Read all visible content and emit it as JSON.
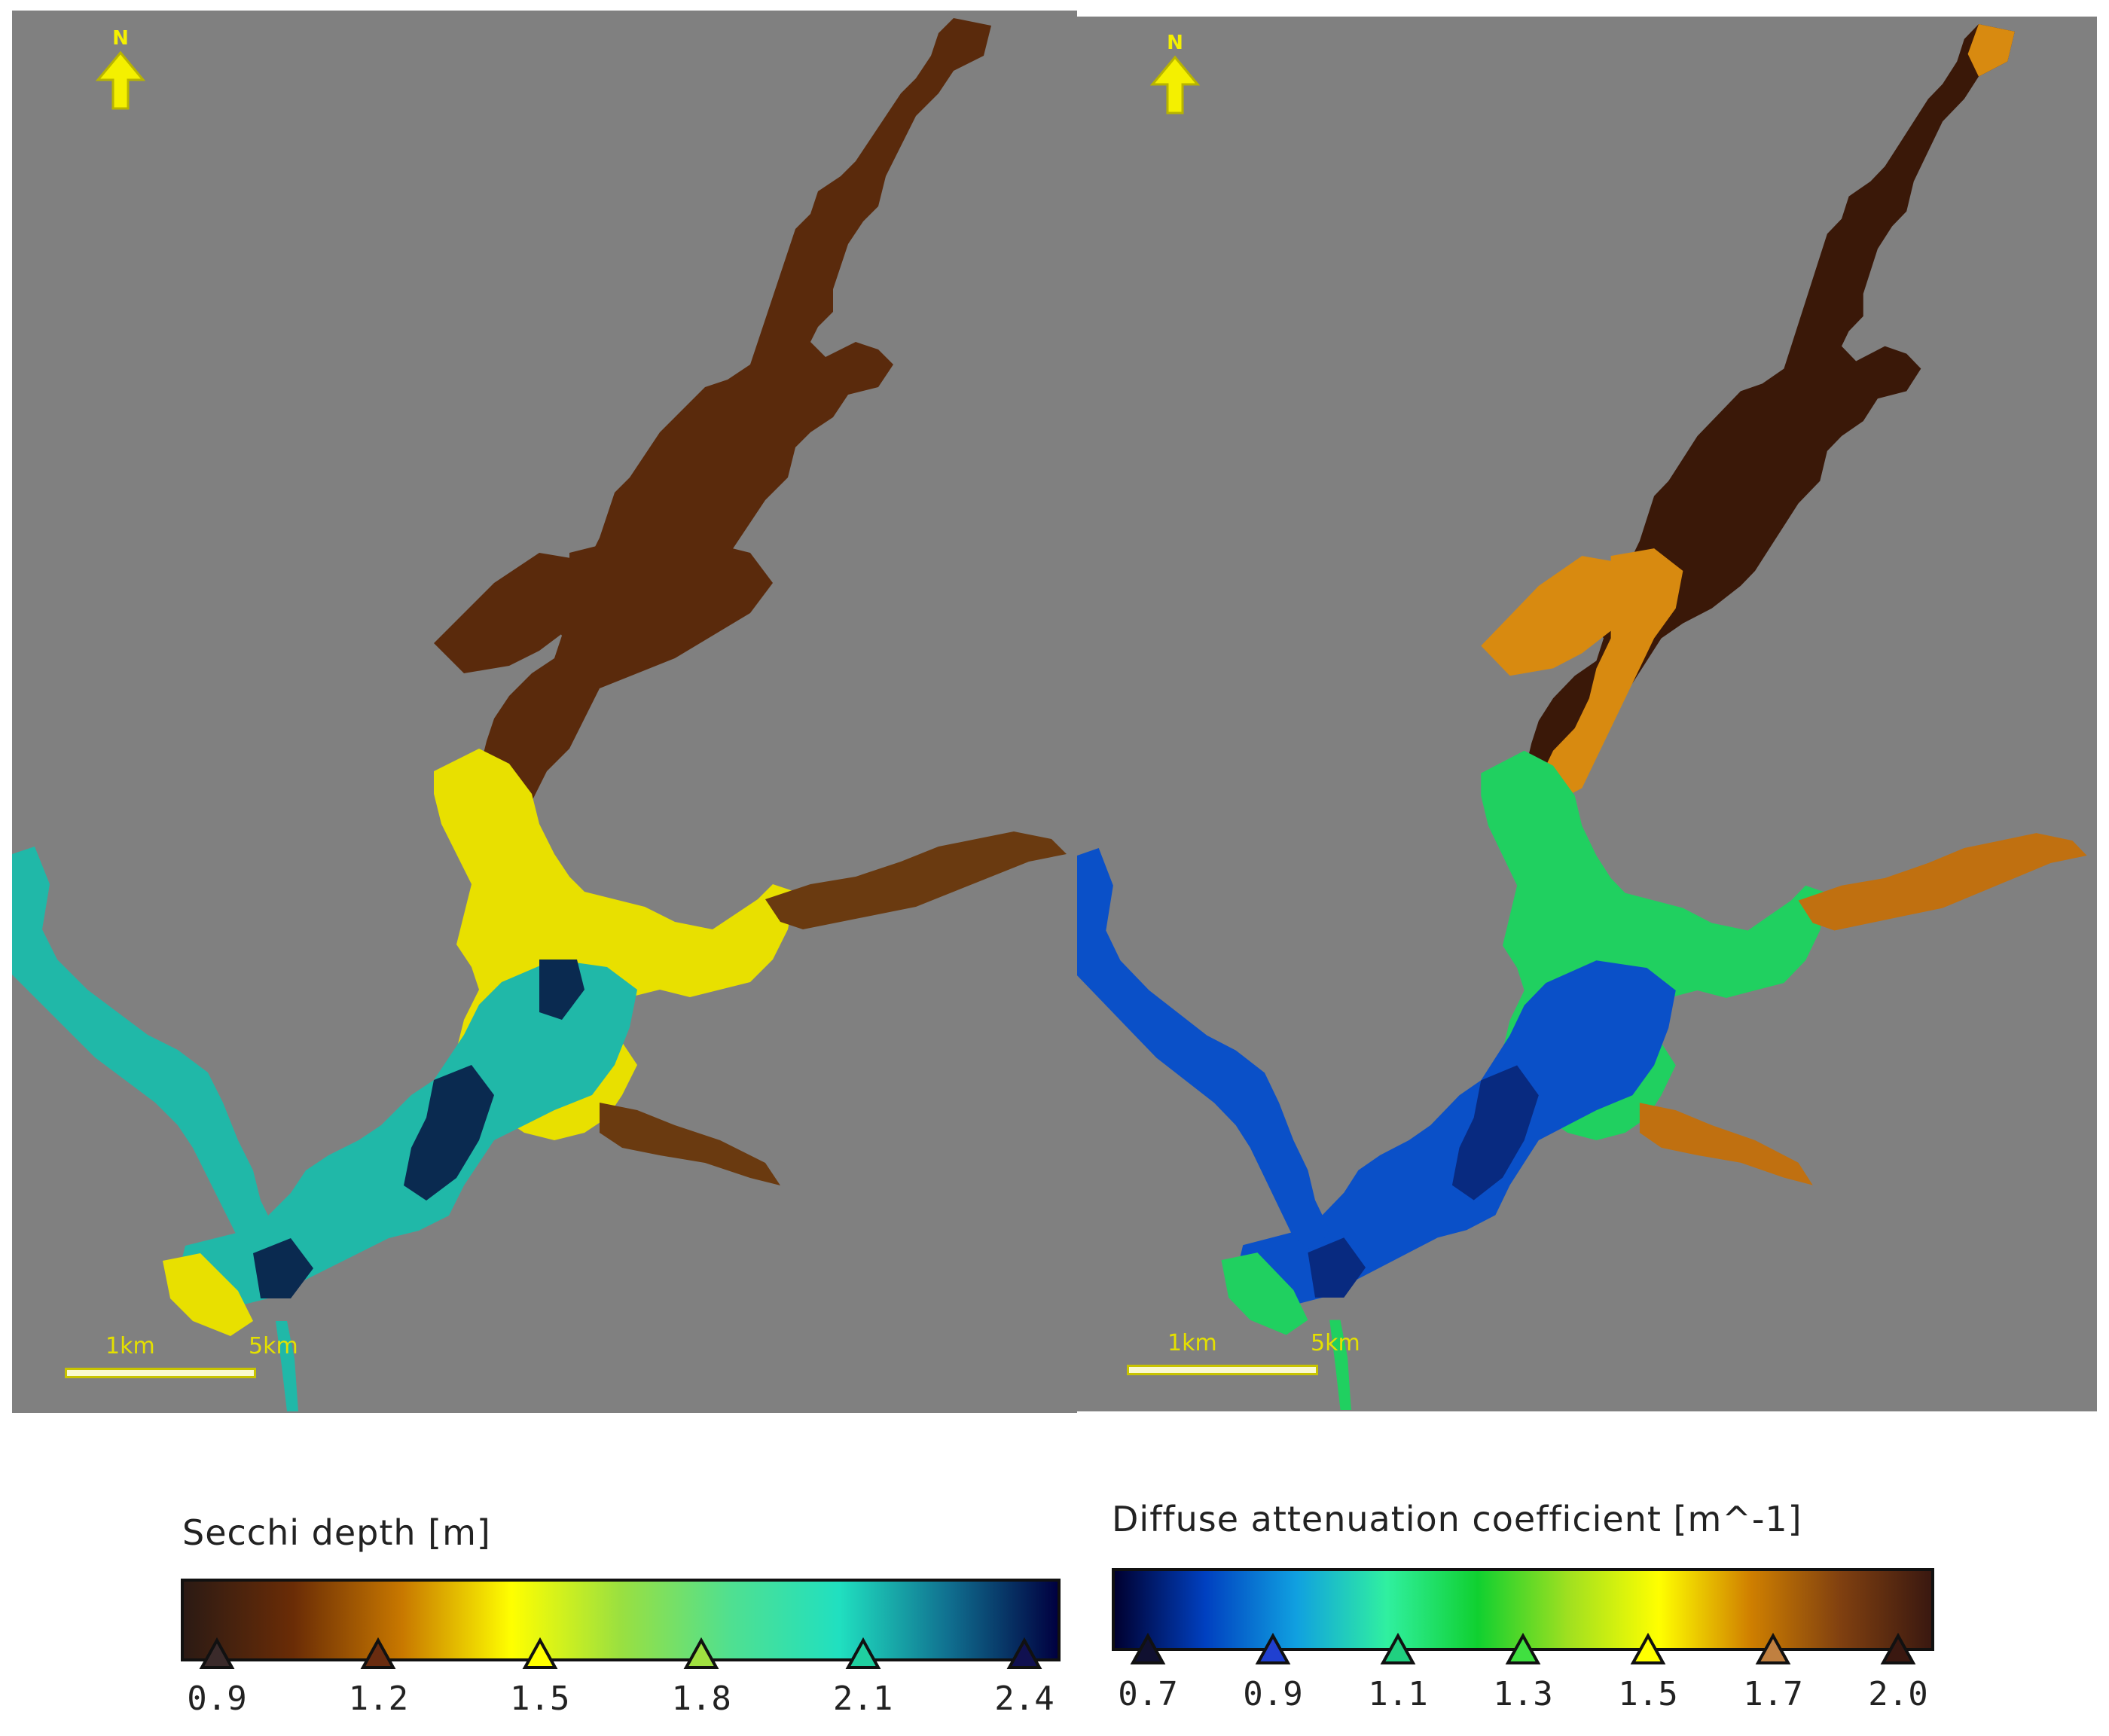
{
  "maps": {
    "left": {
      "north_label": "N",
      "scale_labels": [
        "1km",
        "5km"
      ],
      "water_colors": {
        "upper_reach": "#5a2a0c",
        "middle": "#e8e000",
        "lower": "#20b8a8",
        "deep": "#0a2a50",
        "east_arm": "#6a3a10"
      }
    },
    "right": {
      "north_label": "N",
      "scale_labels": [
        "1km",
        "5km"
      ],
      "water_colors": {
        "upper_reach": "#3a1808",
        "orange": "#d88a10",
        "middle": "#20d060",
        "lower": "#0a50c8",
        "deep": "#082a80",
        "east_arm": "#c07010"
      }
    }
  },
  "legends": [
    {
      "title": "Secchi depth [m]",
      "gradient": [
        "#2b1a14",
        "#6a2c06",
        "#c87800",
        "#ffff00",
        "#9ae040",
        "#50e090",
        "#20e0c0",
        "#107090",
        "#000040"
      ],
      "ticks": [
        {
          "label": "0.9",
          "color": "#3a2a2a"
        },
        {
          "label": "1.2",
          "color": "#6a2c10"
        },
        {
          "label": "1.5",
          "color": "#ffff00"
        },
        {
          "label": "1.8",
          "color": "#a0e040"
        },
        {
          "label": "2.1",
          "color": "#20d0a0"
        },
        {
          "label": "2.4",
          "color": "#101050"
        }
      ]
    },
    {
      "title": "Diffuse attenuation coefficient [m^-1]",
      "gradient": [
        "#000030",
        "#0040c0",
        "#10a0e0",
        "#30f0a0",
        "#10d030",
        "#a0e020",
        "#ffff00",
        "#d08000",
        "#804010",
        "#3a1810"
      ],
      "ticks": [
        {
          "label": "0.7",
          "color": "#101030"
        },
        {
          "label": "0.9",
          "color": "#2040d0"
        },
        {
          "label": "1.1",
          "color": "#20d080"
        },
        {
          "label": "1.3",
          "color": "#40e040"
        },
        {
          "label": "1.5",
          "color": "#ffff00"
        },
        {
          "label": "1.7",
          "color": "#c08040"
        },
        {
          "label": "2.0",
          "color": "#3a1810"
        }
      ]
    }
  ]
}
